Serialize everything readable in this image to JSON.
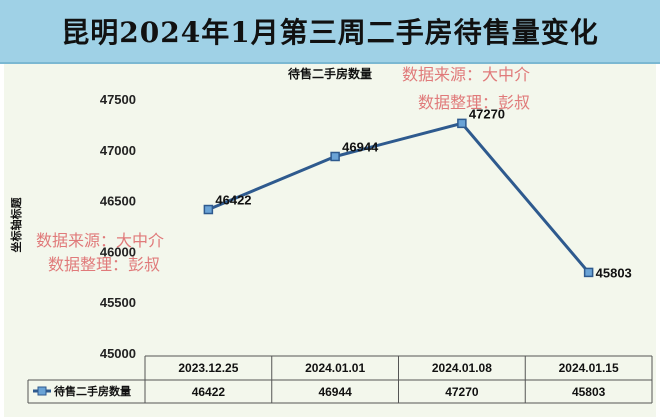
{
  "title": "昆明2024年1月第三周二手房待售量变化",
  "watermarks": [
    "数据来源：大中介",
    "数据整理：彭叔"
  ],
  "colors": {
    "line": "#2e5a8e",
    "marker_fill": "#6aa3d6",
    "title_bg": "#9fd1e6",
    "plot_bg": "#f3f7ec",
    "watermark": "#e07a7a"
  },
  "chart_data": {
    "type": "line",
    "title": "待售二手房数量",
    "ylabel": "坐标轴标题",
    "xlabel": "",
    "categories": [
      "2023.12.25",
      "2024.01.01",
      "2024.01.08",
      "2024.01.15"
    ],
    "series": [
      {
        "name": "待售二手房数量",
        "values": [
          46422,
          46944,
          47270,
          45803
        ]
      }
    ],
    "ylim": [
      45000,
      47500
    ],
    "yticks": [
      "45000",
      "45500",
      "46000",
      "46500",
      "47000",
      "47500"
    ],
    "data_labels": [
      "46422",
      "46944",
      "47270",
      "45803"
    ],
    "grid": false,
    "legend": "data-table-left",
    "data_table": true
  }
}
